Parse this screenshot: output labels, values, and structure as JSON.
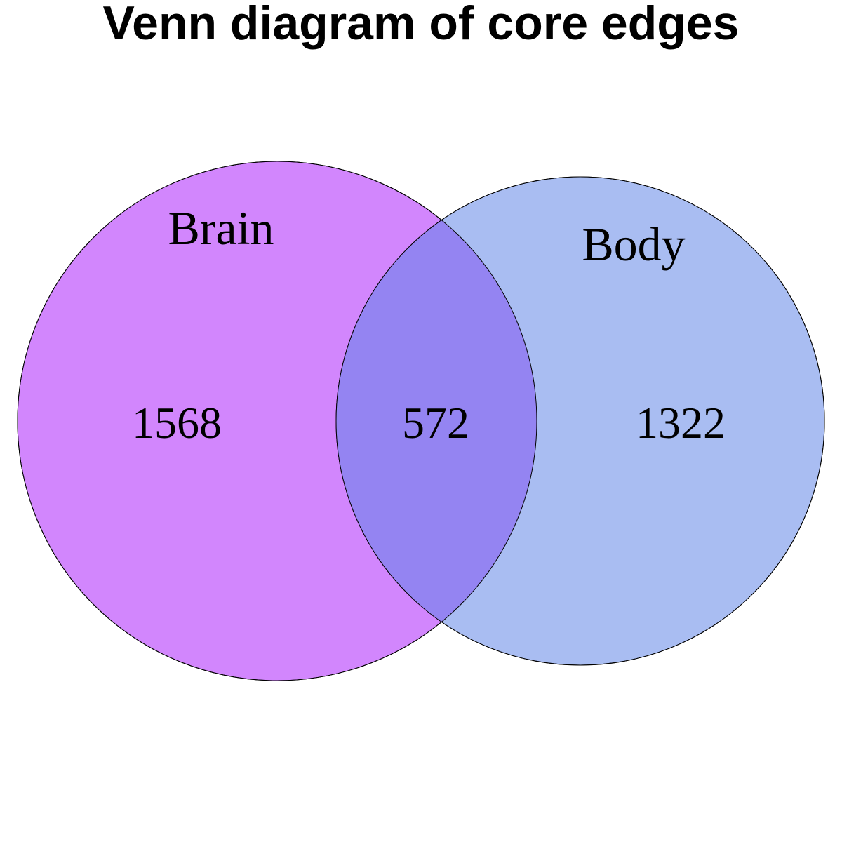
{
  "title": "Venn diagram of core edges",
  "sets": [
    {
      "name": "Brain",
      "only_count": "1568",
      "color": "#D286FD"
    },
    {
      "name": "Body",
      "only_count": "1322",
      "color": "#A9BDF2"
    }
  ],
  "intersection": {
    "count": "572",
    "color": "#9484F2"
  }
}
